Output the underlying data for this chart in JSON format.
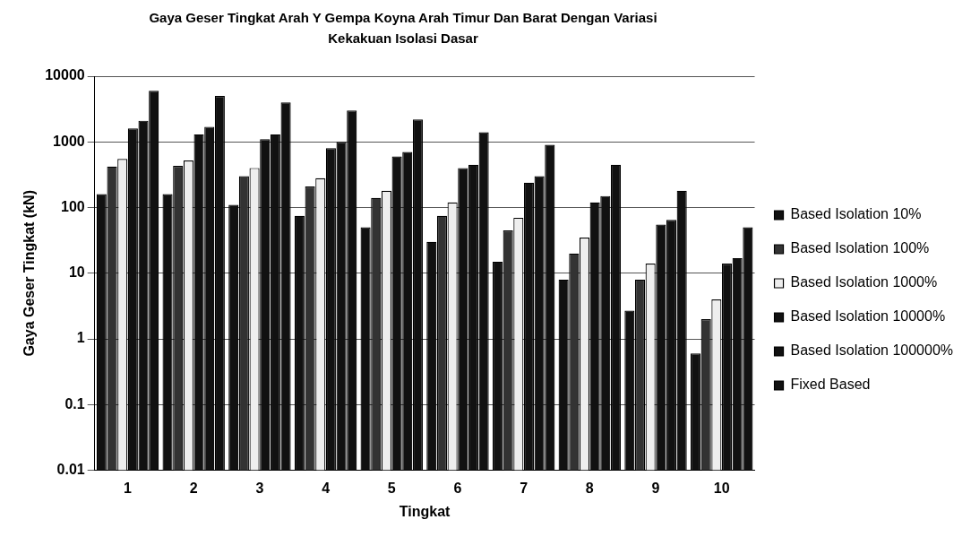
{
  "chart_data": {
    "type": "bar",
    "title": "Gaya Geser Tingkat Arah Y Gempa Koyna Arah Timur Dan Barat Dengan Variasi Kekakuan Isolasi Dasar",
    "xlabel": "Tingkat",
    "ylabel": "Gaya Geser Tingkat (kN)",
    "categories": [
      "1",
      "2",
      "3",
      "4",
      "5",
      "6",
      "7",
      "8",
      "9",
      "10"
    ],
    "series": [
      {
        "name": "Based Isolation 10%",
        "color": "#111111",
        "values": [
          160,
          160,
          110,
          75,
          50,
          30,
          15,
          8,
          2.7,
          0.6
        ]
      },
      {
        "name": "Based Isolation 100%",
        "color": "#333333",
        "values": [
          420,
          430,
          300,
          210,
          140,
          75,
          45,
          20,
          8,
          2
        ]
      },
      {
        "name": "Based Isolation 1000%",
        "color": "#eeeeee",
        "values": [
          550,
          520,
          400,
          280,
          180,
          120,
          70,
          35,
          14,
          4
        ]
      },
      {
        "name": "Based Isolation 10000%",
        "color": "#111111",
        "values": [
          1600,
          1300,
          1100,
          800,
          600,
          400,
          240,
          120,
          55,
          14
        ]
      },
      {
        "name": "Based Isolation 100000%",
        "color": "#111111",
        "values": [
          2100,
          1700,
          1300,
          1000,
          700,
          450,
          300,
          150,
          65,
          17
        ]
      },
      {
        "name": "Fixed Based",
        "color": "#111111",
        "values": [
          6000,
          5000,
          4000,
          3000,
          2200,
          1400,
          900,
          450,
          180,
          50
        ]
      }
    ],
    "log": "y",
    "ylim": [
      0.01,
      10000
    ],
    "yticks": [
      0.01,
      0.1,
      1,
      10,
      100,
      1000,
      10000
    ],
    "grid": "y",
    "legend": "right"
  }
}
